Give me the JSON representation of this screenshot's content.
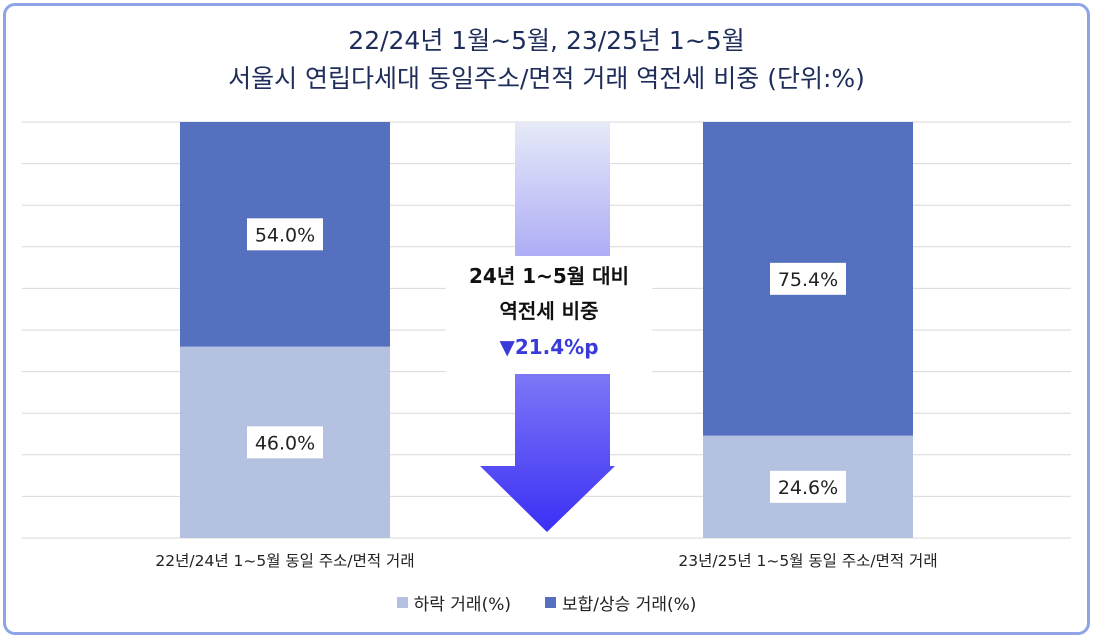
{
  "chart_data": {
    "type": "bar",
    "stacked": true,
    "percent": true,
    "title_line1": "22/24년 1월~5월, 23/25년 1~5월",
    "title_line2": "서울시 연립다세대 동일주소/면적 거래 역전세 비중 (단위:%)",
    "categories": [
      "22년/24년 1~5월 동일 주소/면적 거래",
      "23년/25년 1~5월 동일 주소/면적 거래"
    ],
    "series": [
      {
        "name": "하락 거래(%)",
        "values": [
          46.0,
          24.6
        ],
        "labels": [
          "46.0%",
          "24.6%"
        ],
        "color": "#b4c1e0"
      },
      {
        "name": "보합/상승 거래(%)",
        "values": [
          54.0,
          75.4
        ],
        "labels": [
          "54.0%",
          "75.4%"
        ],
        "color": "#5570bf"
      }
    ],
    "ylim": [
      0,
      100
    ],
    "grid": true,
    "legend_position": "bottom",
    "annotation": {
      "line1": "24년 1~5월 대비",
      "line2": "역전세 비중",
      "change": "▼21.4%p",
      "change_color": "#3a3ad8",
      "arrow_color_top": "#e6eaf7",
      "arrow_color_bottom": "#3b2ff5"
    }
  }
}
